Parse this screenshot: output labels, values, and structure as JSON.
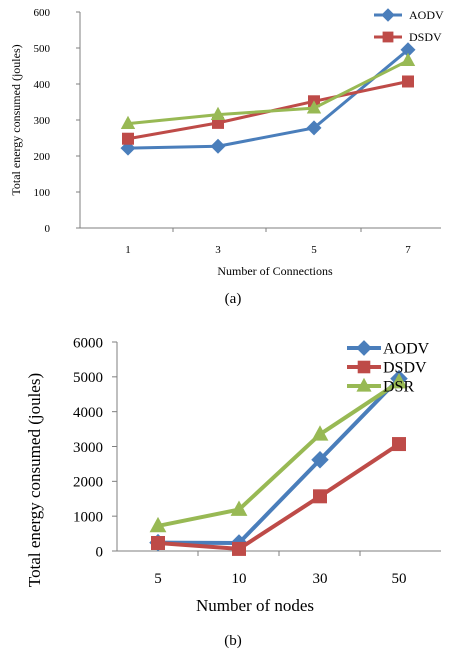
{
  "colors": {
    "AODV": "#4a7ebb",
    "DSDV": "#be4b48",
    "DSR": "#98b954",
    "axis": "#7f7f7f"
  },
  "chart_data": [
    {
      "type": "line",
      "caption": "(a)",
      "title": "",
      "xlabel": "Number of Connections",
      "ylabel": "Total energy consumed (joules)",
      "categories": [
        "1",
        "3",
        "5",
        "7"
      ],
      "ylim": [
        0,
        600
      ],
      "yticks": [
        0,
        100,
        200,
        300,
        400,
        500,
        600
      ],
      "grid": false,
      "legend_position": "top-right",
      "legend_entries": [
        "AODV",
        "DSDV"
      ],
      "series": [
        {
          "name": "AODV",
          "marker": "diamond",
          "values": [
            222,
            227,
            278,
            495
          ]
        },
        {
          "name": "DSDV",
          "marker": "square",
          "values": [
            248,
            292,
            352,
            407
          ]
        },
        {
          "marker": "triangle",
          "values": [
            290,
            315,
            333,
            465
          ]
        }
      ]
    },
    {
      "type": "line",
      "caption": "(b)",
      "title": "",
      "xlabel": "Number of nodes",
      "ylabel": "Total energy consumed (joules)",
      "categories": [
        "5",
        "10",
        "30",
        "50"
      ],
      "ylim": [
        0,
        6000
      ],
      "yticks": [
        0,
        1000,
        2000,
        3000,
        4000,
        5000,
        6000
      ],
      "grid": false,
      "legend_position": "top-right",
      "legend_entries": [
        "AODV",
        "DSDV",
        "DSR"
      ],
      "series": [
        {
          "name": "AODV",
          "marker": "diamond",
          "values": [
            240,
            230,
            2620,
            4950
          ]
        },
        {
          "name": "DSDV",
          "marker": "square",
          "values": [
            230,
            60,
            1570,
            3070
          ]
        },
        {
          "name": "DSR",
          "marker": "triangle",
          "values": [
            720,
            1190,
            3350,
            4850
          ]
        }
      ]
    }
  ]
}
